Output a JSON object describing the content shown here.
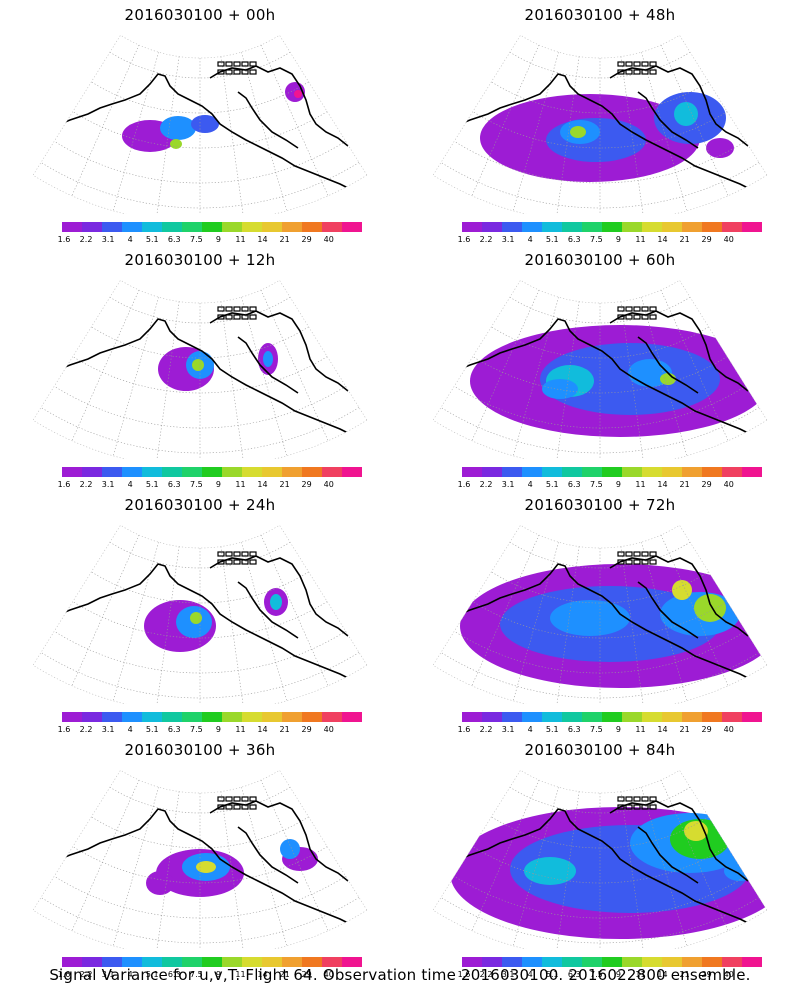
{
  "panels": [
    {
      "title": "2016030100 + 00h",
      "level": 0
    },
    {
      "title": "2016030100 + 48h",
      "level": 4
    },
    {
      "title": "2016030100 + 12h",
      "level": 1
    },
    {
      "title": "2016030100 + 60h",
      "level": 5
    },
    {
      "title": "2016030100 + 24h",
      "level": 2
    },
    {
      "title": "2016030100 + 72h",
      "level": 6
    },
    {
      "title": "2016030100 + 36h",
      "level": 3
    },
    {
      "title": "2016030100 + 84h",
      "level": 7
    }
  ],
  "colorbar": {
    "colors": [
      "#9d1cd4",
      "#7a29e0",
      "#3c5af0",
      "#1e90ff",
      "#11bcdc",
      "#10c8a0",
      "#1fd26a",
      "#20cc20",
      "#9ad82a",
      "#d6dc30",
      "#e8c830",
      "#f0a030",
      "#f07820",
      "#f04060",
      "#f01490"
    ],
    "tick_labels": [
      "1.6",
      "2.2",
      "3.1",
      "4",
      "5.1",
      "6.3",
      "7.5",
      "9",
      "11",
      "14",
      "21",
      "29",
      "40"
    ]
  },
  "caption": "Signal Variance for u,v,T. Flight 64. Observation time 2016030100. 2016022800 ensemble."
}
